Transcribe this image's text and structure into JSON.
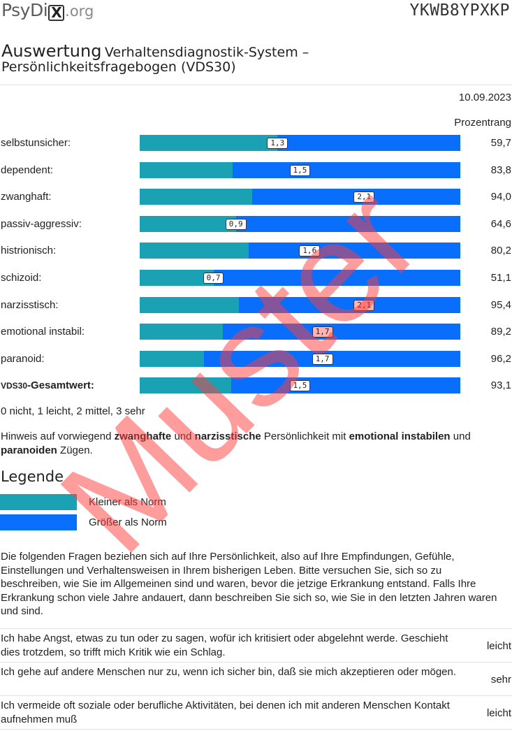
{
  "header": {
    "logo_main": "PsyDi",
    "logo_x": "X",
    "logo_tld": ".org",
    "code": "YKWB8YPXKP"
  },
  "title": {
    "main": "Auswertung",
    "rest": "Verhaltensdiagnostik-System –",
    "line2": "Persönlichkeitsfragebogen (VDS30)"
  },
  "date": "10.09.2023",
  "pr_header": "Prozentrang",
  "scales": [
    {
      "label": "selbstunsicher:",
      "score": "1,3",
      "fill": 0.43,
      "marker": 0.43,
      "pr": "59,7",
      "warn": false,
      "bold": false
    },
    {
      "label": "dependent:",
      "score": "1,5",
      "fill": 0.29,
      "marker": 0.5,
      "pr": "83,8",
      "warn": false,
      "bold": false
    },
    {
      "label": "zwanghaft:",
      "score": "2,1",
      "fill": 0.35,
      "marker": 0.7,
      "pr": "94,0",
      "warn": false,
      "bold": false
    },
    {
      "label": "passiv-aggressiv:",
      "score": "0,9",
      "fill": 0.3,
      "marker": 0.3,
      "pr": "64,6",
      "warn": false,
      "bold": false
    },
    {
      "label": "histrionisch:",
      "score": "1,6",
      "fill": 0.34,
      "marker": 0.53,
      "pr": "80,2",
      "warn": false,
      "bold": false
    },
    {
      "label": "schizoid:",
      "score": "0,7",
      "fill": 0.23,
      "marker": 0.23,
      "pr": "51,1",
      "warn": false,
      "bold": false
    },
    {
      "label": "narzisstisch:",
      "score": "2,1",
      "fill": 0.31,
      "marker": 0.7,
      "pr": "95,4",
      "warn": true,
      "bold": false
    },
    {
      "label": "emotional instabil:",
      "score": "1,7",
      "fill": 0.26,
      "marker": 0.57,
      "pr": "89,2",
      "warn": true,
      "bold": false
    },
    {
      "label": "paranoid:",
      "score": "1,7",
      "fill": 0.2,
      "marker": 0.57,
      "pr": "96,2",
      "warn": false,
      "bold": false
    },
    {
      "label_small": "VDS30",
      "label": "-Gesamtwert:",
      "score": "1,5",
      "fill": 0.286,
      "marker": 0.5,
      "pr": "93,1",
      "warn": false,
      "bold": true
    }
  ],
  "scale_note": "0 nicht, 1 leicht, 2 mittel, 3 sehr",
  "hint": {
    "p1": "Hinweis auf vorwiegend ",
    "b1": "zwanghafte",
    "p2": " und ",
    "b2": "narzisstische",
    "p3": " Persönlichkeit mit ",
    "b3": "emotional instabilen",
    "p4": " und ",
    "b4": "paranoiden",
    "p5": " Zügen."
  },
  "legend": {
    "title": "Legende",
    "items": [
      {
        "label": "Kleiner als Norm",
        "color": "#1aa2b4"
      },
      {
        "label": "Größer als Norm",
        "color": "#0a6efc"
      }
    ]
  },
  "intro": "Die folgenden Fragen beziehen sich auf Ihre Persönlichkeit, also auf Ihre Empfindungen, Gefühle, Einstellungen und Verhaltensweisen in Ihrem bisherigen Leben. Bitte versuchen Sie, sich so zu beschreiben, wie Sie im Allgemeinen sind und waren, bevor die jetzige Erkrankung entstand. Falls Ihre Erkrankung schon viele Jahre andauert, dann beschreiben Sie sich so, wie Sie in den letzten Jahren waren und sind.",
  "questions": [
    {
      "text": "Ich habe Angst, etwas zu tun oder zu sagen, wofür ich kritisiert oder abgelehnt werde. Geschieht dies trotzdem, so trifft mich Kritik wie ein Schlag.",
      "answer": "leicht"
    },
    {
      "text": "Ich gehe auf andere Menschen nur zu, wenn ich sicher bin, daß sie mich akzeptieren oder mögen.",
      "answer": "sehr"
    },
    {
      "text": "Ich vermeide oft soziale oder berufliche Aktivitäten, bei denen ich mit anderen Menschen Kontakt aufnehmen muß",
      "answer": "leicht"
    }
  ],
  "watermark": "Muster",
  "colors": {
    "below_norm": "#1aa2b4",
    "above_norm": "#0a6efc",
    "warn_badge": "#ffb3b3",
    "watermark": "#ff3b3b"
  }
}
